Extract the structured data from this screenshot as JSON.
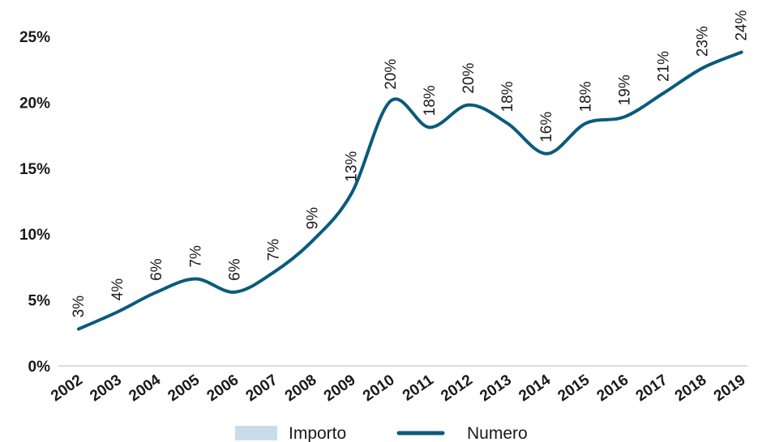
{
  "chart_data": {
    "type": "line",
    "title": "",
    "xlabel": "",
    "ylabel": "",
    "ylim": [
      0,
      25
    ],
    "yticks": [
      "0%",
      "5%",
      "10%",
      "15%",
      "20%",
      "25%"
    ],
    "categories": [
      "2002",
      "2003",
      "2004",
      "2005",
      "2006",
      "2007",
      "2008",
      "2009",
      "2010",
      "2011",
      "2012",
      "2013",
      "2014",
      "2015",
      "2016",
      "2017",
      "2018",
      "2019"
    ],
    "series": [
      {
        "name": "Numero",
        "color": "#0b5a7c",
        "values": [
          2.8,
          4.1,
          5.6,
          6.6,
          5.6,
          7.1,
          9.5,
          13.1,
          20.1,
          18.1,
          19.8,
          18.4,
          16.1,
          18.4,
          18.9,
          20.7,
          22.6,
          23.8
        ],
        "labels": [
          "3%",
          "4%",
          "6%",
          "7%",
          "6%",
          "7%",
          "9%",
          "13%",
          "20%",
          "18%",
          "20%",
          "18%",
          "16%",
          "18%",
          "19%",
          "21%",
          "23%",
          "24%"
        ]
      }
    ],
    "legend": {
      "placement": "bottom",
      "items": [
        {
          "label": "Importo",
          "color": "#c8dde7",
          "swatch": "box"
        },
        {
          "label": "Numero",
          "color": "#0b5a7c",
          "swatch": "line"
        }
      ]
    },
    "grid": false
  }
}
